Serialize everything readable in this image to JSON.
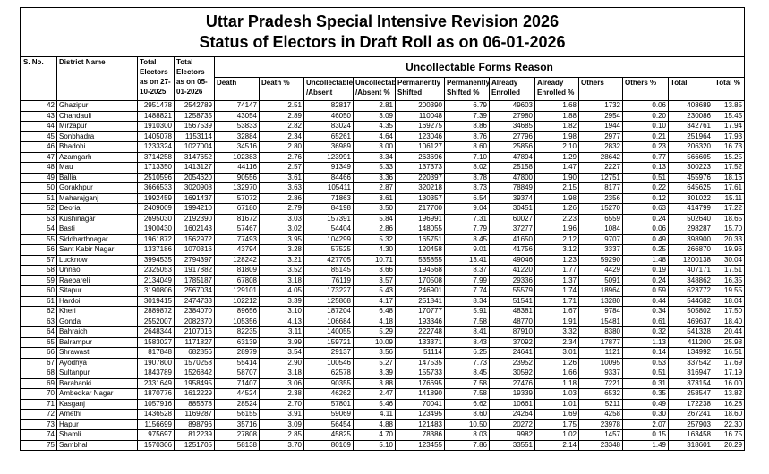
{
  "title": [
    "Uttar Pradesh Special Intensive Revision 2026",
    "Status of Electors in Draft Roll as on 06-01-2026"
  ],
  "table": {
    "group_header": "Uncollectable Forms Reason",
    "columns": [
      "S. No.",
      "District Name",
      "Total Electors as on 27-10-2025",
      "Total Electors as on 05-01-2026",
      "Death",
      "Death %",
      "Uncollectable /Absent",
      "Uncollectable /Absent %",
      "Permanently Shifted",
      "Permanently Shifted %",
      "Already Enrolled",
      "Already Enrolled %",
      "Others",
      "Others %",
      "Total",
      "Total %"
    ],
    "rows": [
      [
        "42",
        "Ghazipur",
        "2951478",
        "2542789",
        "74147",
        "2.51",
        "82817",
        "2.81",
        "200390",
        "6.79",
        "49603",
        "1.68",
        "1732",
        "0.06",
        "408689",
        "13.85"
      ],
      [
        "43",
        "Chandauli",
        "1488821",
        "1258735",
        "43054",
        "2.89",
        "46050",
        "3.09",
        "110048",
        "7.39",
        "27980",
        "1.88",
        "2954",
        "0.20",
        "230086",
        "15.45"
      ],
      [
        "44",
        "Mirzapur",
        "1910300",
        "1567539",
        "53833",
        "2.82",
        "83024",
        "4.35",
        "169275",
        "8.86",
        "34685",
        "1.82",
        "1944",
        "0.10",
        "342761",
        "17.94"
      ],
      [
        "45",
        "Sonbhadra",
        "1405078",
        "1153114",
        "32884",
        "2.34",
        "65261",
        "4.64",
        "123046",
        "8.76",
        "27796",
        "1.98",
        "2977",
        "0.21",
        "251964",
        "17.93"
      ],
      [
        "46",
        "Bhadohi",
        "1233324",
        "1027004",
        "34516",
        "2.80",
        "36989",
        "3.00",
        "106127",
        "8.60",
        "25856",
        "2.10",
        "2832",
        "0.23",
        "206320",
        "16.73"
      ],
      [
        "47",
        "Azamgarh",
        "3714258",
        "3147652",
        "102383",
        "2.76",
        "123991",
        "3.34",
        "263696",
        "7.10",
        "47894",
        "1.29",
        "28642",
        "0.77",
        "566605",
        "15.25"
      ],
      [
        "48",
        "Mau",
        "1713350",
        "1413127",
        "44116",
        "2.57",
        "91349",
        "5.33",
        "137373",
        "8.02",
        "25158",
        "1.47",
        "2227",
        "0.13",
        "300223",
        "17.52"
      ],
      [
        "49",
        "Ballia",
        "2510596",
        "2054620",
        "90556",
        "3.61",
        "84466",
        "3.36",
        "220397",
        "8.78",
        "47800",
        "1.90",
        "12751",
        "0.51",
        "455976",
        "18.16"
      ],
      [
        "50",
        "Gorakhpur",
        "3666533",
        "3020908",
        "132970",
        "3.63",
        "105411",
        "2.87",
        "320218",
        "8.73",
        "78849",
        "2.15",
        "8177",
        "0.22",
        "645625",
        "17.61"
      ],
      [
        "51",
        "Maharajganj",
        "1992459",
        "1691437",
        "57072",
        "2.86",
        "71863",
        "3.61",
        "130357",
        "6.54",
        "39374",
        "1.98",
        "2356",
        "0.12",
        "301022",
        "15.11"
      ],
      [
        "52",
        "Deoria",
        "2409009",
        "1994210",
        "67180",
        "2.79",
        "84198",
        "3.50",
        "217700",
        "9.04",
        "30451",
        "1.26",
        "15270",
        "0.63",
        "414799",
        "17.22"
      ],
      [
        "53",
        "Kushinagar",
        "2695030",
        "2192390",
        "81672",
        "3.03",
        "157391",
        "5.84",
        "196991",
        "7.31",
        "60027",
        "2.23",
        "6559",
        "0.24",
        "502640",
        "18.65"
      ],
      [
        "54",
        "Basti",
        "1900430",
        "1602143",
        "57467",
        "3.02",
        "54404",
        "2.86",
        "148055",
        "7.79",
        "37277",
        "1.96",
        "1084",
        "0.06",
        "298287",
        "15.70"
      ],
      [
        "55",
        "Siddharthnagar",
        "1961872",
        "1562972",
        "77493",
        "3.95",
        "104299",
        "5.32",
        "165751",
        "8.45",
        "41650",
        "2.12",
        "9707",
        "0.49",
        "398900",
        "20.33"
      ],
      [
        "56",
        "Sant Kabir Nagar",
        "1337186",
        "1070316",
        "43794",
        "3.28",
        "57525",
        "4.30",
        "120458",
        "9.01",
        "41756",
        "3.12",
        "3337",
        "0.25",
        "266870",
        "19.96"
      ],
      [
        "57",
        "Lucknow",
        "3994535",
        "2794397",
        "128242",
        "3.21",
        "427705",
        "10.71",
        "535855",
        "13.41",
        "49046",
        "1.23",
        "59290",
        "1.48",
        "1200138",
        "30.04"
      ],
      [
        "58",
        "Unnao",
        "2325053",
        "1917882",
        "81809",
        "3.52",
        "85145",
        "3.66",
        "194568",
        "8.37",
        "41220",
        "1.77",
        "4429",
        "0.19",
        "407171",
        "17.51"
      ],
      [
        "59",
        "Raebareli",
        "2134049",
        "1785187",
        "67808",
        "3.18",
        "76119",
        "3.57",
        "170508",
        "7.99",
        "29336",
        "1.37",
        "5091",
        "0.24",
        "348862",
        "16.35"
      ],
      [
        "60",
        "Sitapur",
        "3190806",
        "2567034",
        "129101",
        "4.05",
        "173227",
        "5.43",
        "246901",
        "7.74",
        "55579",
        "1.74",
        "18964",
        "0.59",
        "623772",
        "19.55"
      ],
      [
        "61",
        "Hardoi",
        "3019415",
        "2474733",
        "102212",
        "3.39",
        "125808",
        "4.17",
        "251841",
        "8.34",
        "51541",
        "1.71",
        "13280",
        "0.44",
        "544682",
        "18.04"
      ],
      [
        "62",
        "Kheri",
        "2889872",
        "2384070",
        "89656",
        "3.10",
        "187204",
        "6.48",
        "170777",
        "5.91",
        "48381",
        "1.67",
        "9784",
        "0.34",
        "505802",
        "17.50"
      ],
      [
        "63",
        "Gonda",
        "2552007",
        "2082370",
        "105356",
        "4.13",
        "106684",
        "4.18",
        "193346",
        "7.58",
        "48770",
        "1.91",
        "15481",
        "0.61",
        "469637",
        "18.40"
      ],
      [
        "64",
        "Bahraich",
        "2648344",
        "2107016",
        "82235",
        "3.11",
        "140055",
        "5.29",
        "222748",
        "8.41",
        "87910",
        "3.32",
        "8380",
        "0.32",
        "541328",
        "20.44"
      ],
      [
        "65",
        "Balrampur",
        "1583027",
        "1171827",
        "63139",
        "3.99",
        "159721",
        "10.09",
        "133371",
        "8.43",
        "37092",
        "2.34",
        "17877",
        "1.13",
        "411200",
        "25.98"
      ],
      [
        "66",
        "Shrawasti",
        "817848",
        "682856",
        "28979",
        "3.54",
        "29137",
        "3.56",
        "51114",
        "6.25",
        "24641",
        "3.01",
        "1121",
        "0.14",
        "134992",
        "16.51"
      ],
      [
        "67",
        "Ayodhya",
        "1907800",
        "1570258",
        "55414",
        "2.90",
        "100546",
        "5.27",
        "147535",
        "7.73",
        "23952",
        "1.26",
        "10095",
        "0.53",
        "337542",
        "17.69"
      ],
      [
        "68",
        "Sultanpur",
        "1843789",
        "1526842",
        "58707",
        "3.18",
        "62578",
        "3.39",
        "155733",
        "8.45",
        "30592",
        "1.66",
        "9337",
        "0.51",
        "316947",
        "17.19"
      ],
      [
        "69",
        "Barabanki",
        "2331649",
        "1958495",
        "71407",
        "3.06",
        "90355",
        "3.88",
        "176695",
        "7.58",
        "27476",
        "1.18",
        "7221",
        "0.31",
        "373154",
        "16.00"
      ],
      [
        "70",
        "Ambedkar Nagar",
        "1870776",
        "1612229",
        "44524",
        "2.38",
        "46262",
        "2.47",
        "141890",
        "7.58",
        "19339",
        "1.03",
        "6532",
        "0.35",
        "258547",
        "13.82"
      ],
      [
        "71",
        "Kasganj",
        "1057916",
        "885678",
        "28524",
        "2.70",
        "57801",
        "5.46",
        "70041",
        "6.62",
        "10661",
        "1.01",
        "5211",
        "0.49",
        "172238",
        "16.28"
      ],
      [
        "72",
        "Amethi",
        "1436528",
        "1169287",
        "56155",
        "3.91",
        "59069",
        "4.11",
        "123495",
        "8.60",
        "24264",
        "1.69",
        "4258",
        "0.30",
        "267241",
        "18.60"
      ],
      [
        "73",
        "Hapur",
        "1156699",
        "898796",
        "35716",
        "3.09",
        "56454",
        "4.88",
        "121483",
        "10.50",
        "20272",
        "1.75",
        "23978",
        "2.07",
        "257903",
        "22.30"
      ],
      [
        "74",
        "Shamli",
        "975697",
        "812239",
        "27808",
        "2.85",
        "45825",
        "4.70",
        "78386",
        "8.03",
        "9982",
        "1.02",
        "1457",
        "0.15",
        "163458",
        "16.75"
      ],
      [
        "75",
        "Sambhal",
        "1570306",
        "1251705",
        "58138",
        "3.70",
        "80109",
        "5.10",
        "123455",
        "7.86",
        "33551",
        "2.14",
        "23348",
        "1.49",
        "318601",
        "20.29"
      ]
    ]
  }
}
